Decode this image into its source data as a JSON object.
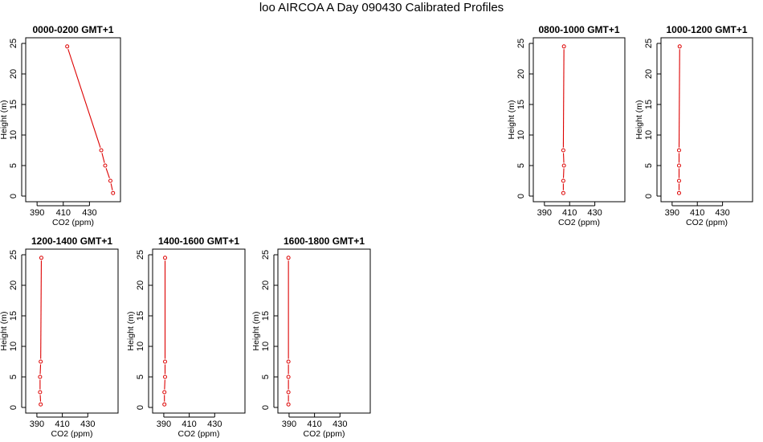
{
  "page": {
    "title": "loo AIRCOA A  Day 090430  Calibrated Profiles"
  },
  "style": {
    "line_color": "#dd0000",
    "axis_color": "#000000",
    "background": "#ffffff"
  },
  "chart_data": [
    {
      "type": "line",
      "title": "0000-0200 GMT+1",
      "xlabel": "CO2 (ppm)",
      "ylabel": "Height (m)",
      "xlim": [
        385,
        450
      ],
      "ylim": [
        0,
        25
      ],
      "xticks": [
        390,
        410,
        430
      ],
      "yticks": [
        0,
        5,
        10,
        15,
        20,
        25
      ],
      "points": [
        {
          "x": 448,
          "y": 0.5
        },
        {
          "x": 446,
          "y": 2.5
        },
        {
          "x": 442,
          "y": 5
        },
        {
          "x": 439,
          "y": 7.5
        },
        {
          "x": 413,
          "y": 24.5
        }
      ]
    },
    {
      "type": "line",
      "title": "0800-1000 GMT+1",
      "xlabel": "CO2 (ppm)",
      "ylabel": "Height (m)",
      "xlim": [
        385,
        450
      ],
      "ylim": [
        0,
        25
      ],
      "xticks": [
        390,
        410,
        430
      ],
      "yticks": [
        0,
        5,
        10,
        15,
        20,
        25
      ],
      "points": [
        {
          "x": 405,
          "y": 0.5
        },
        {
          "x": 405,
          "y": 2.5
        },
        {
          "x": 405.5,
          "y": 5
        },
        {
          "x": 405,
          "y": 7.5
        },
        {
          "x": 405.5,
          "y": 24.5
        }
      ]
    },
    {
      "type": "line",
      "title": "1000-1200 GMT+1",
      "xlabel": "CO2 (ppm)",
      "ylabel": "Height (m)",
      "xlim": [
        385,
        450
      ],
      "ylim": [
        0,
        25
      ],
      "xticks": [
        390,
        410,
        430
      ],
      "yticks": [
        0,
        5,
        10,
        15,
        20,
        25
      ],
      "points": [
        {
          "x": 395.5,
          "y": 0.5
        },
        {
          "x": 395.5,
          "y": 2.5
        },
        {
          "x": 395.5,
          "y": 5
        },
        {
          "x": 395.5,
          "y": 7.5
        },
        {
          "x": 396,
          "y": 24.5
        }
      ]
    },
    {
      "type": "line",
      "title": "1200-1400 GMT+1",
      "xlabel": "CO2 (ppm)",
      "ylabel": "Height (m)",
      "xlim": [
        385,
        450
      ],
      "ylim": [
        0,
        25
      ],
      "xticks": [
        390,
        410,
        430
      ],
      "yticks": [
        0,
        5,
        10,
        15,
        20,
        25
      ],
      "points": [
        {
          "x": 393,
          "y": 0.5
        },
        {
          "x": 392.5,
          "y": 2.5
        },
        {
          "x": 392.5,
          "y": 5
        },
        {
          "x": 393,
          "y": 7.5
        },
        {
          "x": 393.5,
          "y": 24.5
        }
      ]
    },
    {
      "type": "line",
      "title": "1400-1600 GMT+1",
      "xlabel": "CO2 (ppm)",
      "ylabel": "Height (m)",
      "xlim": [
        385,
        450
      ],
      "ylim": [
        0,
        25
      ],
      "xticks": [
        390,
        410,
        430
      ],
      "yticks": [
        0,
        5,
        10,
        15,
        20,
        25
      ],
      "points": [
        {
          "x": 390.5,
          "y": 0.5
        },
        {
          "x": 390.5,
          "y": 2.5
        },
        {
          "x": 391,
          "y": 5
        },
        {
          "x": 391,
          "y": 7.5
        },
        {
          "x": 391,
          "y": 24.5
        }
      ]
    },
    {
      "type": "line",
      "title": "1600-1800 GMT+1",
      "xlabel": "CO2 (ppm)",
      "ylabel": "Height (m)",
      "xlim": [
        385,
        450
      ],
      "ylim": [
        0,
        25
      ],
      "xticks": [
        390,
        410,
        430
      ],
      "yticks": [
        0,
        5,
        10,
        15,
        20,
        25
      ],
      "points": [
        {
          "x": 389.5,
          "y": 0.5
        },
        {
          "x": 389.5,
          "y": 2.5
        },
        {
          "x": 389.5,
          "y": 5
        },
        {
          "x": 389.5,
          "y": 7.5
        },
        {
          "x": 389.5,
          "y": 24.5
        }
      ]
    }
  ]
}
